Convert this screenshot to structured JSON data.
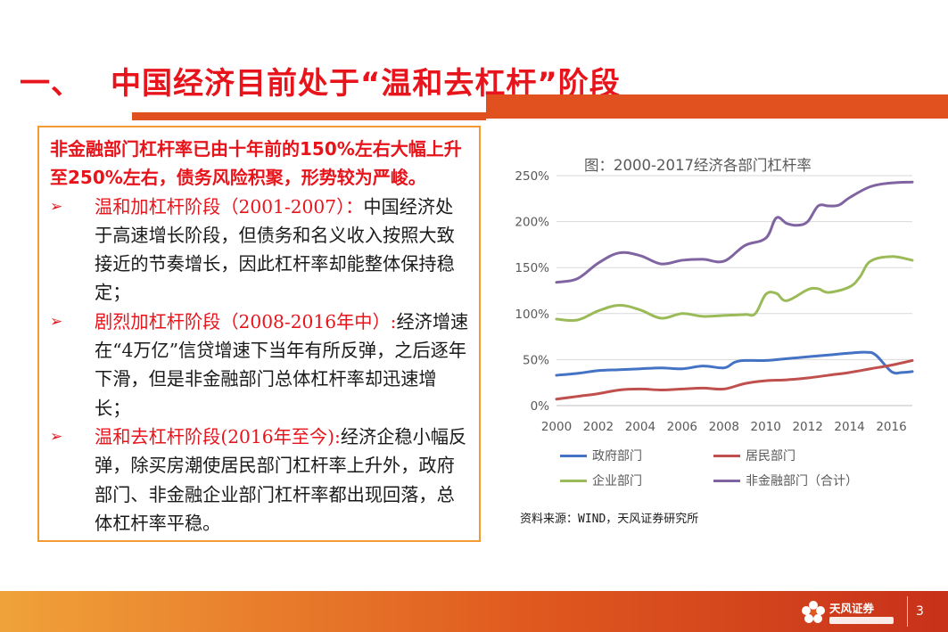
{
  "slide": {
    "title_number": "一、",
    "title": "中国经济目前处于“温和去杠杆”阶段",
    "page_number": "3"
  },
  "textbox": {
    "intro": "非金融部门杠杆率已由十年前的150%左右大幅上升至250%左右，债务风险积聚，形势较为严峻。",
    "bullets": [
      {
        "arrow": "➢",
        "head": "温和加杠杆阶段（2001-2007）：",
        "body": "中国经济处于高速增长阶段，但债务和名义收入按照大致接近的节奏增长，因此杠杆率却能整体保持稳定；"
      },
      {
        "arrow": "➢",
        "head": "剧烈加杠杆阶段（2008-2016年中）:",
        "body": "经济增速在“4万亿”信贷增速下当年有所反弹，之后逐年下滑，但是非金融部门总体杠杆率却迅速增长；"
      },
      {
        "arrow": "➢",
        "head": "温和去杠杆阶段(2016年至今):",
        "body": "经济企稳小幅反弹，除买房潮使居民部门杠杆率上升外，政府部门、非金融企业部门杠杆率都出现回落，总体杠杆率平稳。"
      }
    ]
  },
  "source": "资料来源：WIND，天风证券研究所",
  "footer": {
    "logo_text": "天风证券"
  },
  "chart_data": {
    "type": "line",
    "title": "图：2000-2017经济各部门杠杆率",
    "xlabel": "",
    "ylabel": "",
    "ylim": [
      0,
      250
    ],
    "xlim": [
      2000,
      2017
    ],
    "yticks": [
      "0%",
      "50%",
      "100%",
      "150%",
      "200%",
      "250%"
    ],
    "xticks": [
      "2000",
      "2002",
      "2004",
      "2006",
      "2008",
      "2010",
      "2012",
      "2014",
      "2016"
    ],
    "grid": true,
    "legend_position": "bottom",
    "series": [
      {
        "name": "政府部门",
        "color": "#4472c4",
        "points": [
          [
            2000,
            33
          ],
          [
            2001,
            35
          ],
          [
            2002,
            38
          ],
          [
            2003,
            39
          ],
          [
            2004,
            40
          ],
          [
            2005,
            41
          ],
          [
            2006,
            40
          ],
          [
            2007,
            43
          ],
          [
            2008,
            41
          ],
          [
            2008.5,
            47
          ],
          [
            2009,
            49
          ],
          [
            2010,
            49
          ],
          [
            2011,
            51
          ],
          [
            2012,
            53
          ],
          [
            2013,
            55
          ],
          [
            2014,
            57
          ],
          [
            2014.75,
            58
          ],
          [
            2015.25,
            55
          ],
          [
            2016,
            37
          ],
          [
            2016.5,
            36
          ],
          [
            2017,
            37
          ]
        ]
      },
      {
        "name": "居民部门",
        "color": "#c0504d",
        "points": [
          [
            2000,
            7
          ],
          [
            2001,
            10
          ],
          [
            2002,
            13
          ],
          [
            2003,
            17
          ],
          [
            2004,
            18
          ],
          [
            2005,
            17
          ],
          [
            2006,
            18
          ],
          [
            2007,
            19
          ],
          [
            2008,
            18
          ],
          [
            2009,
            24
          ],
          [
            2010,
            27
          ],
          [
            2011,
            28
          ],
          [
            2012,
            30
          ],
          [
            2013,
            33
          ],
          [
            2014,
            36
          ],
          [
            2015,
            40
          ],
          [
            2016,
            44
          ],
          [
            2017,
            49
          ]
        ]
      },
      {
        "name": "企业部门",
        "color": "#9bbb59",
        "points": [
          [
            2000,
            94
          ],
          [
            2001,
            93
          ],
          [
            2002,
            103
          ],
          [
            2003,
            109
          ],
          [
            2004,
            104
          ],
          [
            2005,
            95
          ],
          [
            2006,
            100
          ],
          [
            2007,
            97
          ],
          [
            2008,
            98
          ],
          [
            2009,
            99
          ],
          [
            2009.5,
            100
          ],
          [
            2010,
            121
          ],
          [
            2010.5,
            122
          ],
          [
            2011,
            114
          ],
          [
            2012,
            126
          ],
          [
            2012.5,
            127
          ],
          [
            2013,
            123
          ],
          [
            2014,
            129
          ],
          [
            2014.5,
            140
          ],
          [
            2015,
            157
          ],
          [
            2016,
            162
          ],
          [
            2017,
            158
          ]
        ]
      },
      {
        "name": "非金融部门（合计）",
        "color": "#8064a2",
        "points": [
          [
            2000,
            134
          ],
          [
            2001,
            138
          ],
          [
            2002,
            155
          ],
          [
            2003,
            166
          ],
          [
            2004,
            163
          ],
          [
            2005,
            154
          ],
          [
            2006,
            158
          ],
          [
            2007,
            159
          ],
          [
            2008,
            157
          ],
          [
            2009,
            174
          ],
          [
            2010,
            182
          ],
          [
            2010.5,
            204
          ],
          [
            2011,
            198
          ],
          [
            2011.5,
            196
          ],
          [
            2012,
            200
          ],
          [
            2012.5,
            217
          ],
          [
            2013,
            217
          ],
          [
            2013.5,
            218
          ],
          [
            2014,
            226
          ],
          [
            2015,
            238
          ],
          [
            2016,
            242
          ],
          [
            2017,
            243
          ]
        ]
      }
    ]
  }
}
